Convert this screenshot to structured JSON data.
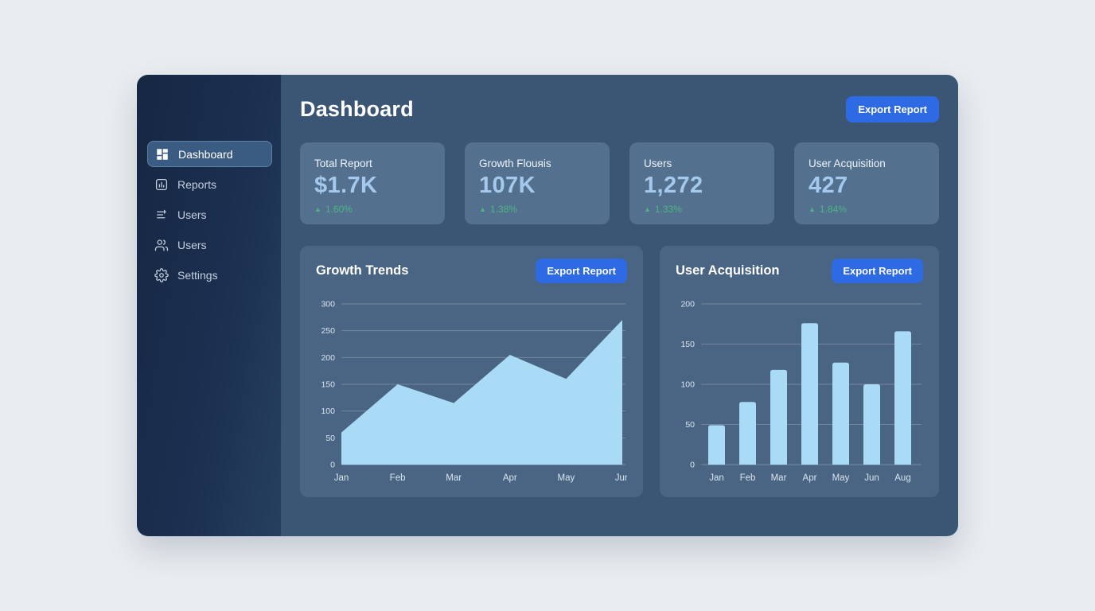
{
  "header": {
    "title": "Dashboard",
    "export_label": "Export Report"
  },
  "sidebar": {
    "items": [
      {
        "label": "Dashboard",
        "icon": "dashboard-grid-icon",
        "active": true
      },
      {
        "label": "Reports",
        "icon": "reports-chart-icon",
        "active": false
      },
      {
        "label": "Users",
        "icon": "list-filter-icon",
        "active": false
      },
      {
        "label": "Users",
        "icon": "users-icon",
        "active": false
      },
      {
        "label": "Settings",
        "icon": "settings-gear-icon",
        "active": false
      }
    ]
  },
  "icons": {
    "trend_up": "▲"
  },
  "stats": [
    {
      "label": "Total Report",
      "value": "$1.7K",
      "change": "1.60%",
      "trend": "up"
    },
    {
      "label": "Growth Flouяis",
      "value": "107K",
      "change": "1.38%",
      "trend": "up"
    },
    {
      "label": "Users",
      "value": "1,272",
      "change": "1.33%",
      "trend": "up"
    },
    {
      "label": "User Acquisition",
      "value": "427",
      "change": "1.84%",
      "trend": "up"
    }
  ],
  "chart_data": [
    {
      "type": "area",
      "title": "Growth Trends",
      "button_label": "Export Report",
      "categories": [
        "Jan",
        "Feb",
        "Mar",
        "Apr",
        "May",
        "Jun"
      ],
      "values": [
        60,
        150,
        115,
        205,
        160,
        270
      ],
      "xlabel": "",
      "ylabel": "",
      "ylim": [
        0,
        300
      ],
      "yticks": [
        0,
        50,
        100,
        150,
        200,
        250,
        300
      ],
      "grid": "horizontal",
      "legend": "none"
    },
    {
      "type": "bar",
      "title": "User Acquisition",
      "button_label": "Export Report",
      "categories": [
        "Jan",
        "Feb",
        "Mar",
        "Apr",
        "May",
        "Jun",
        "Aug"
      ],
      "values": [
        49,
        78,
        118,
        176,
        127,
        100,
        166
      ],
      "xlabel": "",
      "ylabel": "",
      "ylim": [
        0,
        200
      ],
      "yticks": [
        0,
        50,
        100,
        150,
        200
      ],
      "grid": "horizontal",
      "legend": "none"
    }
  ],
  "colors": {
    "accent": "#2d6ae3",
    "chart_fill": "#a9daf6",
    "positive": "#4db583",
    "grid_line": "rgba(255,255,255,0.22)",
    "tick_text": "#d9e4ee",
    "main_bg": "#3a5674",
    "stat_card_bg": "#53718f",
    "chart_card_bg": "#4a6583",
    "sidebar_bg": "#1b2f50"
  }
}
